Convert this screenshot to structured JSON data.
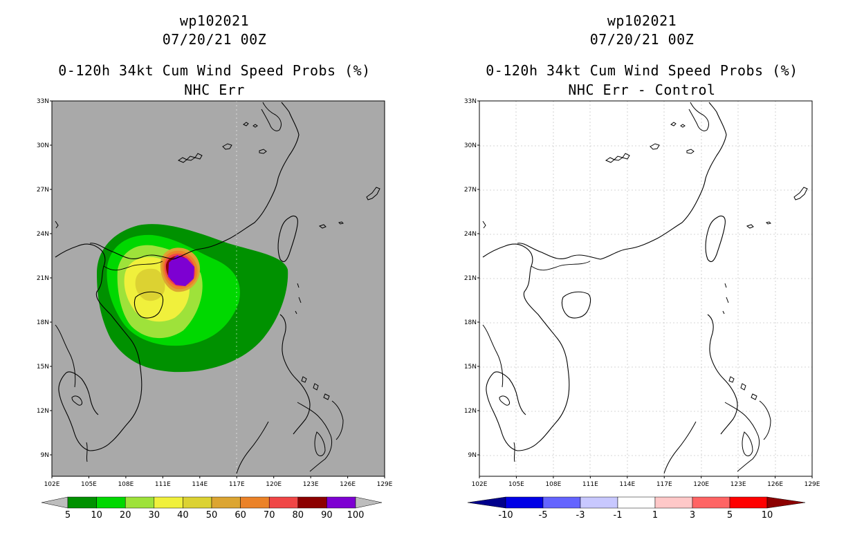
{
  "left": {
    "storm_id": "wp102021",
    "datetime": "07/20/21 00Z",
    "product": "0-120h 34kt Cum Wind Speed Probs (%)",
    "subtitle": "NHC Err",
    "background": "#a9a9a9",
    "colorbar": {
      "labels": [
        "5",
        "10",
        "20",
        "30",
        "40",
        "50",
        "60",
        "70",
        "80",
        "90",
        "100"
      ],
      "colors": [
        "#009100",
        "#00d800",
        "#9ee23a",
        "#f0f03c",
        "#dcd232",
        "#dca532",
        "#eb8228",
        "#f04646",
        "#8c0000",
        "#7d00d2"
      ],
      "end_colors": [
        "#bdbdbd",
        "#bdbdbd"
      ]
    }
  },
  "right": {
    "storm_id": "wp102021",
    "datetime": "07/20/21 00Z",
    "product": "0-120h 34kt Cum Wind Speed Probs (%)",
    "subtitle": "NHC Err - Control",
    "background": "#ffffff",
    "colorbar": {
      "labels": [
        "-10",
        "-5",
        "-3",
        "-1",
        "1",
        "3",
        "5",
        "10"
      ],
      "colors": [
        "#0000e6",
        "#6464ff",
        "#c8c8ff",
        "#ffffff",
        "#ffc8c8",
        "#ff6464",
        "#ff0000"
      ],
      "end_colors": [
        "#00008c",
        "#8c0000"
      ]
    }
  },
  "axes": {
    "lon_labels": [
      "102E",
      "105E",
      "108E",
      "111E",
      "114E",
      "117E",
      "120E",
      "123E",
      "126E",
      "129E"
    ],
    "lat_labels": [
      "33N",
      "30N",
      "27N",
      "24N",
      "21N",
      "18N",
      "15N",
      "12N",
      "9N"
    ]
  },
  "chart_data": {
    "type": "map",
    "storm_center_approx": {
      "lon": 112.8,
      "lat": 21.5
    },
    "probability_levels": [
      5,
      10,
      20,
      30,
      40,
      50,
      60,
      70,
      80,
      90,
      100
    ],
    "difference_levels": [
      -10,
      -5,
      -3,
      -1,
      1,
      3,
      5,
      10
    ],
    "lon_range": [
      102,
      129
    ],
    "lat_range": [
      7.8,
      33
    ]
  }
}
